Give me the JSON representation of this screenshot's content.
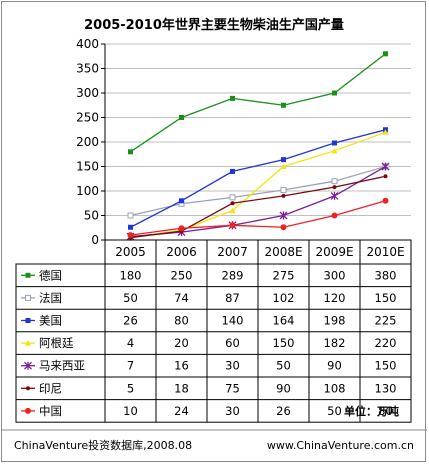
{
  "chart_data": {
    "type": "line",
    "title": "2005-2010年世界主要生物柴油生产国产量",
    "categories": [
      "2005",
      "2006",
      "2007",
      "2008E",
      "2009E",
      "2010E"
    ],
    "ylim": [
      0,
      400
    ],
    "yticks": [
      "0",
      "50",
      "100",
      "150",
      "200",
      "250",
      "300",
      "350",
      "400"
    ],
    "grid": true,
    "legend": "data-table",
    "unit": "单位：万吨",
    "series": [
      {
        "name": "德国",
        "color": "#1a8f1a",
        "marker": "square",
        "values": [
          180,
          250,
          289,
          275,
          300,
          380
        ]
      },
      {
        "name": "法国",
        "color": "#9aa3b5",
        "marker": "square-open",
        "values": [
          50,
          74,
          87,
          102,
          120,
          150
        ]
      },
      {
        "name": "美国",
        "color": "#1f35d6",
        "marker": "square",
        "values": [
          26,
          80,
          140,
          164,
          198,
          225
        ]
      },
      {
        "name": "阿根廷",
        "color": "#f5e40a",
        "marker": "triangle",
        "values": [
          4,
          20,
          60,
          150,
          182,
          220
        ]
      },
      {
        "name": "马来西亚",
        "color": "#7a1f9a",
        "marker": "star",
        "values": [
          7,
          16,
          30,
          50,
          90,
          150
        ]
      },
      {
        "name": "印尼",
        "color": "#7a0a0a",
        "marker": "dot",
        "values": [
          5,
          18,
          75,
          90,
          108,
          130
        ]
      },
      {
        "name": "中国",
        "color": "#ee2222",
        "marker": "circle",
        "values": [
          10,
          24,
          30,
          26,
          50,
          80
        ]
      }
    ]
  },
  "footer": {
    "left": "ChinaVenture投资数据库,2008.08",
    "right": "www.ChinaVenture.com.cn"
  }
}
